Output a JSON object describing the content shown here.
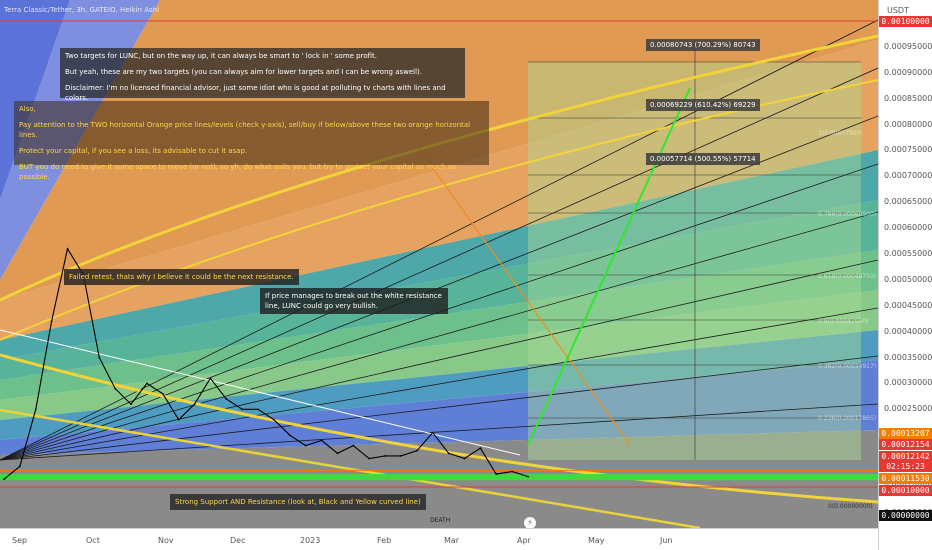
{
  "chart_title": "Terra Classic/Tether, 3h, GATEIO, Heikin Ashi",
  "currency": "USDT",
  "death_label": "DEATH",
  "x_ticks": [
    "Sep",
    "Oct",
    "Nov",
    "Dec",
    "2023",
    "Feb",
    "Mar",
    "Apr",
    "May",
    "Jun"
  ],
  "y_ticks": [
    "0.00095000",
    "0.00090000",
    "0.00085000",
    "0.00080000",
    "0.00075000",
    "0.00070000",
    "0.00065000",
    "0.00060000",
    "0.00055000",
    "0.00050000",
    "0.00045000",
    "0.00040000",
    "0.00035000",
    "0.00030000",
    "0.00025000",
    "0.00020000",
    "0.00015000",
    "0.00010000",
    "0.00005000"
  ],
  "price_badges": [
    {
      "label": "0.00100000",
      "color": "#e53935"
    },
    {
      "label": "0.00013207",
      "color": "#f57c00"
    },
    {
      "label": "0.00012154",
      "color": "#e53935"
    },
    {
      "label": "0.00012142",
      "color": "#e53935"
    },
    {
      "label": "02:15:23",
      "color": "#e53935"
    },
    {
      "label": "0.00011530",
      "color": "#f57c00"
    },
    {
      "label": "0.00010000",
      "color": "#e53935"
    },
    {
      "label": "0.00000000",
      "color": "#111111"
    }
  ],
  "notes": {
    "targets": [
      "Two targets for LUNC, but on the way up, it can always be smart to ' lock in ' some profit.",
      "But yeah, these are my two targets (you can always aim for lower targets and I can be wrong aswell).",
      "Disclaimer: I'm no licensed financial advisor, just some idiot who is good at polluting tv charts with lines and colors."
    ],
    "also": [
      "Also,",
      "Pay attention to the TWO horizontal Orange price lines/levels (check y-axis), sell/buy if below/above these two orange horizontal lines.",
      "Protect your capital, if you see a loss, its advisable to cut it asap.",
      "BUT you do need to give it some space to move (or not), so yh, do what suits you, but try to protect your capital as much as possible."
    ],
    "failed_retest": "Failed retest, thats why I believe it could be the next resistance.",
    "breakout": "If price manages to break out the white resistance line, LUNC could go very bullish.",
    "support": "Strong Support AND Resistance (look at, Black and Yellow curved line)"
  },
  "targets": [
    {
      "label": "0.00080743 (700.29%) 80743"
    },
    {
      "label": "0.00069229 (610.42%) 69229"
    },
    {
      "label": "0.00057714 (500.55%) 57714"
    }
  ],
  "fib_labels": [
    "1(0.00077500)",
    "0.786(0.00060500)",
    "0.618(0.00048750)",
    "0.5(0.00041950)",
    "0.382(0.00034917)",
    "0.236(0.00017865)",
    "0(0.00000000)"
  ],
  "chart_data": {
    "type": "line",
    "title": "Terra Classic/Tether, 3h, GATEIO, Heikin Ashi",
    "xlabel": "",
    "ylabel": "",
    "x": [
      "Aug-26",
      "Sep-01",
      "Sep-05",
      "Sep-08",
      "Sep-09",
      "Sep-10",
      "Sep-12",
      "Sep-15",
      "Sep-20",
      "Sep-25",
      "Oct-01",
      "Oct-05",
      "Oct-10",
      "Oct-15",
      "Oct-20",
      "Oct-25",
      "Nov-01",
      "Nov-05",
      "Nov-10",
      "Nov-15",
      "Nov-20",
      "Dec-01",
      "Dec-10",
      "Dec-20",
      "Jan-01",
      "Jan-10",
      "Jan-20",
      "Feb-01",
      "Feb-10",
      "Feb-20",
      "Mar-01",
      "Mar-10",
      "Mar-20",
      "Apr-01"
    ],
    "series": [
      {
        "values": [
          0.000115,
          0.00014,
          0.00025,
          0.00042,
          0.00056,
          0.00051,
          0.00035,
          0.00029,
          0.00026,
          0.0003,
          0.00028,
          0.00023,
          0.00026,
          0.00031,
          0.00027,
          0.00025,
          0.00025,
          0.00023,
          0.0002,
          0.00018,
          0.00019,
          0.000165,
          0.00018,
          0.000155,
          0.00016,
          0.00016,
          0.00017,
          0.000205,
          0.000165,
          0.000155,
          0.000175,
          0.000125,
          0.00013,
          0.00012
        ]
      }
    ],
    "ylim": [
      0.0,
      0.00105
    ],
    "horizontal_levels": [
      0.001,
      0.00013207,
      0.0001153,
      0.0001
    ],
    "grid": false
  }
}
